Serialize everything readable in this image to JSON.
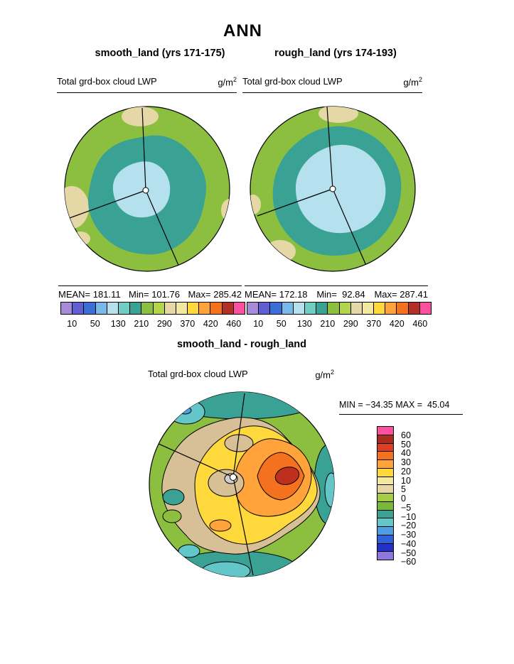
{
  "page_title": "ANN",
  "panels": [
    {
      "subtitle": "smooth_land (yrs 171-175)",
      "field_label": "Total grd-box cloud LWP",
      "units_base": "g/m",
      "units_exp": "2",
      "mean": "MEAN= 181.11",
      "min": "Min= 101.76",
      "max": "Max= 285.42"
    },
    {
      "subtitle": "rough_land (yrs 174-193)",
      "field_label": "Total grd-box cloud LWP",
      "units_base": "g/m",
      "units_exp": "2",
      "mean": "MEAN= 172.18",
      "min": "Min=  92.84",
      "max": "Max= 287.41"
    }
  ],
  "diff": {
    "title": "smooth_land - rough_land",
    "field_label": "Total grd-box cloud LWP",
    "units_base": "g/m",
    "units_exp": "2",
    "minmax": "MIN = −34.35 MAX =  45.04"
  },
  "colorbar_top": {
    "colors": [
      "#A78BD9",
      "#5F5FD3",
      "#3C6FD6",
      "#79B9E8",
      "#B5E1EE",
      "#6FCDC4",
      "#3AA295",
      "#8CBF3F",
      "#B4D44A",
      "#E5D8A6",
      "#F2E8A0",
      "#FFD93B",
      "#FFA33A",
      "#F4711F",
      "#B03227",
      "#FF4FA0"
    ],
    "tick_labels": [
      "10",
      "50",
      "130",
      "210",
      "290",
      "370",
      "420",
      "460"
    ]
  },
  "colorbar_diff": {
    "colors": [
      "#FF4FA0",
      "#A82C20",
      "#E03C24",
      "#F4711F",
      "#FFA33A",
      "#FFD93B",
      "#F2E8A0",
      "#E5D8A6",
      "#A5CC45",
      "#7BB83A",
      "#3AA295",
      "#63C6C9",
      "#4D9FE2",
      "#2E62D9",
      "#2430C8",
      "#9077E0"
    ],
    "labels": [
      "60",
      "50",
      "40",
      "30",
      "20",
      "10",
      "5",
      "0",
      "−5",
      "−10",
      "−20",
      "−30",
      "−40",
      "−50",
      "−60"
    ]
  },
  "map_colors": {
    "green": "#8CBF3F",
    "teal": "#3AA295",
    "light_blue": "#B5E1EE",
    "tan": "#E5D8A6",
    "diff_tan": "#D8C096",
    "yellow": "#FFD93B",
    "orange": "#FFA33A",
    "deep_orange": "#F4711F",
    "dark_red": "#BE2F1E",
    "cyan": "#63C6C9",
    "blue": "#4D9FE2",
    "grey": "#CFCFCF"
  },
  "chart_data": [
    {
      "type": "heatmap",
      "subtype": "polar-projection contour map",
      "title": "smooth_land (yrs 171-175)",
      "variable": "Total grd-box cloud LWP",
      "units": "g/m^2",
      "stats": {
        "mean": 181.11,
        "min": 101.76,
        "max": 285.42
      },
      "labeled_levels": [
        10,
        50,
        130,
        210,
        290,
        370,
        420,
        460
      ],
      "estimated_full_levels": [
        10,
        30,
        50,
        90,
        130,
        170,
        210,
        250,
        290,
        330,
        370,
        395,
        420,
        440,
        460
      ],
      "legend_position": "below, horizontal",
      "description": "Light-blue minimum (~100-130 g/m^2) at pole center, teal ring ~130-210, yellow-green ~210-290 over most of the cap, tan patches ~290-330 near the top and left edges; three meridian lines radiate from pole."
    },
    {
      "type": "heatmap",
      "subtype": "polar-projection contour map",
      "title": "rough_land (yrs 174-193)",
      "variable": "Total grd-box cloud LWP",
      "units": "g/m^2",
      "stats": {
        "mean": 172.18,
        "min": 92.84,
        "max": 287.41
      },
      "labeled_levels": [
        10,
        50,
        130,
        210,
        290,
        370,
        420,
        460
      ],
      "estimated_full_levels": [
        10,
        30,
        50,
        90,
        130,
        170,
        210,
        250,
        290,
        330,
        370,
        395,
        420,
        440,
        460
      ],
      "legend_position": "below, horizontal",
      "description": "Larger light-blue central minimum (~90-130 g/m^2), teal ring, yellow-green exterior, tan patches at top and lower-left edges."
    },
    {
      "type": "heatmap",
      "subtype": "polar-projection contour difference map",
      "title": "smooth_land - rough_land",
      "variable": "Total grd-box cloud LWP",
      "units": "g/m^2",
      "stats": {
        "min": -34.35,
        "max": 45.04
      },
      "levels": [
        -60,
        -50,
        -40,
        -30,
        -20,
        -10,
        -5,
        0,
        5,
        10,
        20,
        30,
        40,
        50,
        60
      ],
      "legend_position": "right, vertical",
      "description": "Positive anomaly (yellow/orange, peak dark-red 40-50 g/m^2) right of pole center; tan ring near zero; green to teal/cyan negative bands (down to about -34 g/m^2) around the rim."
    }
  ]
}
